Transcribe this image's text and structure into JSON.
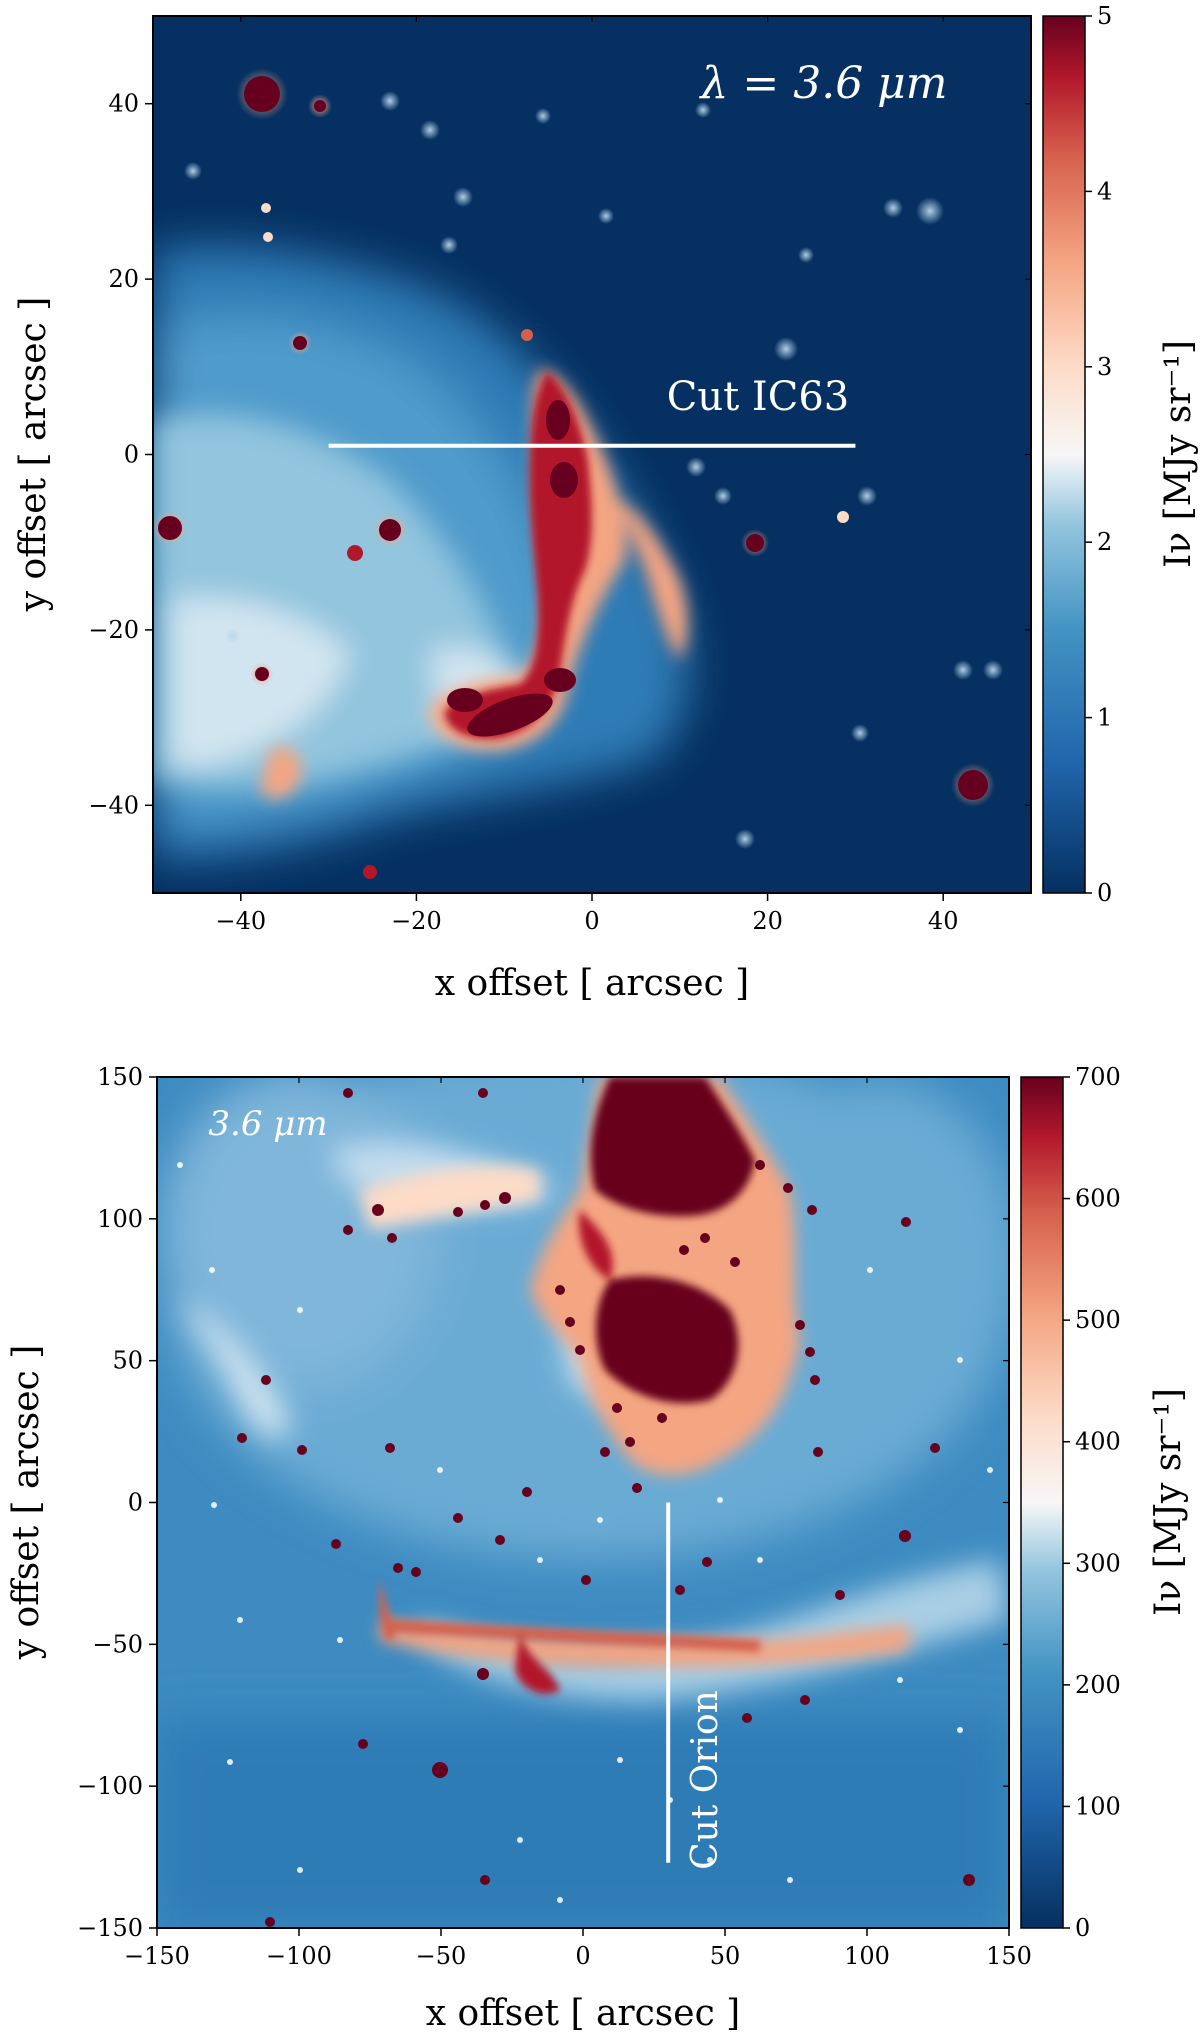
{
  "colors": {
    "map_low": "#053061",
    "map_mid": "#f7f7f7",
    "map_high": "#67001f",
    "cut_line": "#ffffff"
  },
  "chart_data": [
    {
      "type": "heatmap",
      "title": "",
      "annotation": "λ = 3.6 μm",
      "xlabel": "x offset [ arcsec ]",
      "ylabel": "y offset [ arcsec ]",
      "xlim": [
        -50,
        50
      ],
      "ylim": [
        -50,
        50
      ],
      "xticks": [
        -40,
        -20,
        0,
        20,
        40
      ],
      "yticks": [
        -40,
        -20,
        0,
        20,
        40
      ],
      "xtick_labels": [
        "−40",
        "−20",
        "0",
        "20",
        "40"
      ],
      "ytick_labels": [
        "−40",
        "−20",
        "0",
        "20",
        "40"
      ],
      "colorbar": {
        "label": "Iν [MJy sr⁻¹]",
        "range": [
          0,
          5
        ],
        "ticks": [
          0,
          1,
          2,
          3,
          4,
          5
        ],
        "tick_labels": [
          "0",
          "1",
          "2",
          "3",
          "4",
          "5"
        ]
      },
      "cut": {
        "label": "Cut IC63",
        "from": [
          -30,
          1
        ],
        "to": [
          30,
          1
        ]
      },
      "grid": false
    },
    {
      "type": "heatmap",
      "title": "",
      "annotation": "3.6 μm",
      "xlabel": "x offset [ arcsec ]",
      "ylabel": "y offset [ arcsec ]",
      "xlim": [
        -150,
        150
      ],
      "ylim": [
        -150,
        150
      ],
      "xticks": [
        -150,
        -100,
        -50,
        0,
        50,
        100,
        150
      ],
      "yticks": [
        -150,
        -100,
        -50,
        0,
        50,
        100,
        150
      ],
      "xtick_labels": [
        "−150",
        "−100",
        "−50",
        "0",
        "50",
        "100",
        "150"
      ],
      "ytick_labels": [
        "−150",
        "−100",
        "−50",
        "0",
        "50",
        "100",
        "150"
      ],
      "colorbar": {
        "label": "Iν [MJy sr⁻¹]",
        "range": [
          0,
          700
        ],
        "ticks": [
          0,
          100,
          200,
          300,
          400,
          500,
          600,
          700
        ],
        "tick_labels": [
          "0",
          "100",
          "200",
          "300",
          "400",
          "500",
          "600",
          "700"
        ]
      },
      "cut": {
        "label": "Cut Orion",
        "from": [
          30,
          0
        ],
        "to": [
          30,
          -127
        ]
      },
      "grid": false
    }
  ]
}
